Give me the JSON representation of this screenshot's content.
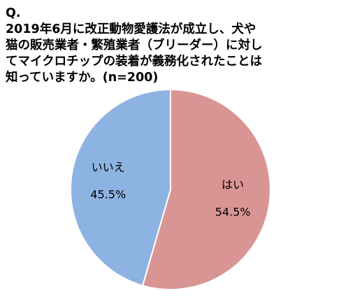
{
  "chart_data": {
    "type": "pie",
    "title_prefix": "Q.",
    "title_lines": [
      "2019年6月に改正動物愛護法が成立し、犬や",
      "猫の販売業者・繁殖業者（ブリーダー）に対し",
      "てマイクロチップの装着が義務化されたことは",
      "知っていますか。(n=200)"
    ],
    "slices": [
      {
        "label": "はい",
        "value": 54.5,
        "value_label": "54.5%",
        "color": "#d99594"
      },
      {
        "label": "いいえ",
        "value": 45.5,
        "value_label": "45.5%",
        "color": "#8db3e2"
      }
    ],
    "start_angle_deg": 0,
    "direction": "clockwise",
    "slice_border_color": "#ffffff",
    "legend": "none"
  }
}
